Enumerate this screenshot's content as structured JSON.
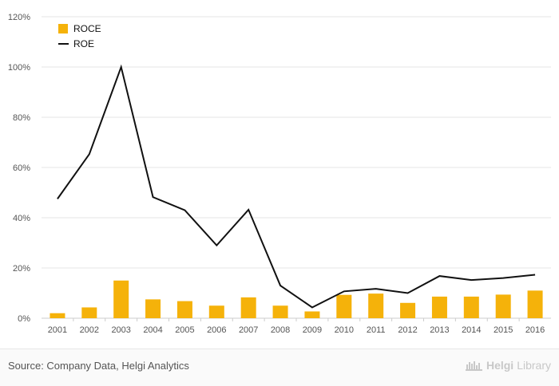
{
  "chart_data": {
    "type": "bar+line",
    "categories": [
      "2001",
      "2002",
      "2003",
      "2004",
      "2005",
      "2006",
      "2007",
      "2008",
      "2009",
      "2010",
      "2011",
      "2012",
      "2013",
      "2014",
      "2015",
      "2016"
    ],
    "series": [
      {
        "name": "ROCE",
        "type": "bar",
        "values": [
          2.0,
          4.3,
          15.0,
          7.5,
          6.8,
          5.0,
          8.3,
          5.0,
          2.7,
          9.3,
          9.8,
          6.1,
          8.6,
          8.6,
          9.4,
          11.0
        ]
      },
      {
        "name": "ROE",
        "type": "line",
        "values": [
          47.5,
          65.3,
          100.0,
          48.2,
          43.0,
          29.0,
          43.2,
          13.0,
          4.3,
          10.7,
          11.7,
          10.0,
          16.8,
          15.2,
          16.0,
          17.3
        ]
      }
    ],
    "yticks": [
      "0%",
      "20%",
      "40%",
      "60%",
      "80%",
      "100%",
      "120%"
    ],
    "ylim": [
      0,
      120
    ],
    "grid": true,
    "legend_position": "top-left",
    "colors": {
      "ROCE": "#f5b20a",
      "ROE": "#111111",
      "grid": "#e6e6e6",
      "axis_text": "#555555"
    }
  },
  "footer": {
    "source": "Source: Company Data, Helgi Analytics",
    "brand_a": "Helgi",
    "brand_b": "Library"
  }
}
